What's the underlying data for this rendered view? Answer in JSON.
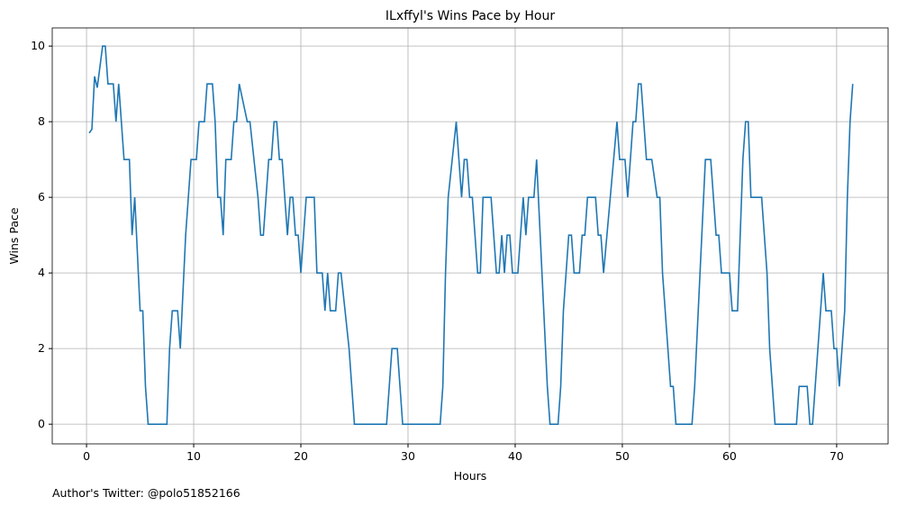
{
  "chart_data": {
    "type": "line",
    "title": "ILxffyl's Wins Pace by Hour",
    "x_label": "Hours",
    "y_label": "Wins Pace",
    "footer": "Author's Twitter: @polo51852166",
    "xlim": [
      -3.2,
      74.8
    ],
    "ylim": [
      -0.52,
      10.48
    ],
    "xticks": [
      0,
      10,
      20,
      30,
      40,
      50,
      60,
      70
    ],
    "yticks": [
      0,
      2,
      4,
      6,
      8,
      10
    ],
    "grid": true,
    "series": [
      {
        "color": "#1f77b4",
        "x": [
          0.25,
          0.5,
          0.75,
          1,
          1.5,
          1.75,
          2,
          2.5,
          2.75,
          3,
          3.5,
          4,
          4.25,
          4.5,
          5,
          5.25,
          5.5,
          5.75,
          7.5,
          7.75,
          8,
          8.5,
          8.75,
          9.25,
          9.75,
          10.25,
          10.5,
          11,
          11.25,
          11.75,
          12,
          12.25,
          12.5,
          12.75,
          13,
          13.5,
          13.75,
          14,
          14.25,
          15,
          15.25,
          16,
          16.25,
          16.5,
          17,
          17.25,
          17.5,
          17.75,
          18,
          18.25,
          18.75,
          19,
          19.25,
          19.5,
          19.75,
          20,
          20.5,
          21.25,
          21.5,
          22,
          22.25,
          22.5,
          22.75,
          23.25,
          23.5,
          23.75,
          24.5,
          25,
          28,
          28.5,
          29,
          29.5,
          33,
          33.25,
          33.5,
          33.75,
          34.5,
          35,
          35.25,
          35.5,
          35.75,
          36,
          36.5,
          36.75,
          37,
          37.75,
          38.25,
          38.5,
          38.75,
          39,
          39.25,
          39.5,
          39.75,
          40.25,
          40.75,
          41,
          41.25,
          41.75,
          42,
          42.5,
          43,
          43.25,
          44,
          44.25,
          44.5,
          45,
          45.25,
          45.5,
          46,
          46.25,
          46.5,
          46.75,
          47.5,
          47.75,
          48,
          48.25,
          49.5,
          49.75,
          50.25,
          50.5,
          51,
          51.25,
          51.5,
          51.75,
          52.25,
          52.75,
          53.25,
          53.5,
          53.75,
          54.5,
          54.75,
          55,
          56.5,
          56.75,
          57.25,
          57.75,
          58.25,
          58.75,
          59,
          59.25,
          60,
          60.25,
          60.75,
          61,
          61.25,
          61.5,
          61.75,
          62,
          63,
          63.5,
          63.75,
          64.25,
          66.25,
          66.5,
          67.25,
          67.5,
          67.75,
          68,
          68.75,
          69,
          69.5,
          69.75,
          70,
          70.25,
          70.75,
          71,
          71.25,
          71.5
        ],
        "values": [
          7.7,
          7.8,
          9.2,
          8.9,
          10,
          10,
          9,
          9,
          8,
          9,
          7,
          7,
          5,
          6,
          3,
          3,
          1,
          0,
          0,
          2,
          3,
          3,
          2,
          5,
          7,
          7,
          8,
          8,
          9,
          9,
          8,
          6,
          6,
          5,
          7,
          7,
          8,
          8,
          9,
          8,
          8,
          6,
          5,
          5,
          7,
          7,
          8,
          8,
          7,
          7,
          5,
          6,
          6,
          5,
          5,
          4,
          6,
          6,
          4,
          4,
          3,
          4,
          3,
          3,
          4,
          4,
          2,
          0,
          0,
          2,
          2,
          0,
          0,
          1,
          4,
          6,
          8,
          6,
          7,
          7,
          6,
          6,
          4,
          4,
          6,
          6,
          4,
          4,
          5,
          4,
          5,
          5,
          4,
          4,
          6,
          5,
          6,
          6,
          7,
          4,
          1,
          0,
          0,
          1,
          3,
          5,
          5,
          4,
          4,
          5,
          5,
          6,
          6,
          5,
          5,
          4,
          8,
          7,
          7,
          6,
          8,
          8,
          9,
          9,
          7,
          7,
          6,
          6,
          4,
          1,
          1,
          0,
          0,
          1,
          4,
          7,
          7,
          5,
          5,
          4,
          4,
          3,
          3,
          5,
          7,
          8,
          8,
          6,
          6,
          4,
          2,
          0,
          0,
          1,
          1,
          0,
          0,
          1,
          4,
          3,
          3,
          2,
          2,
          1,
          3,
          6,
          8,
          9
        ]
      }
    ]
  }
}
